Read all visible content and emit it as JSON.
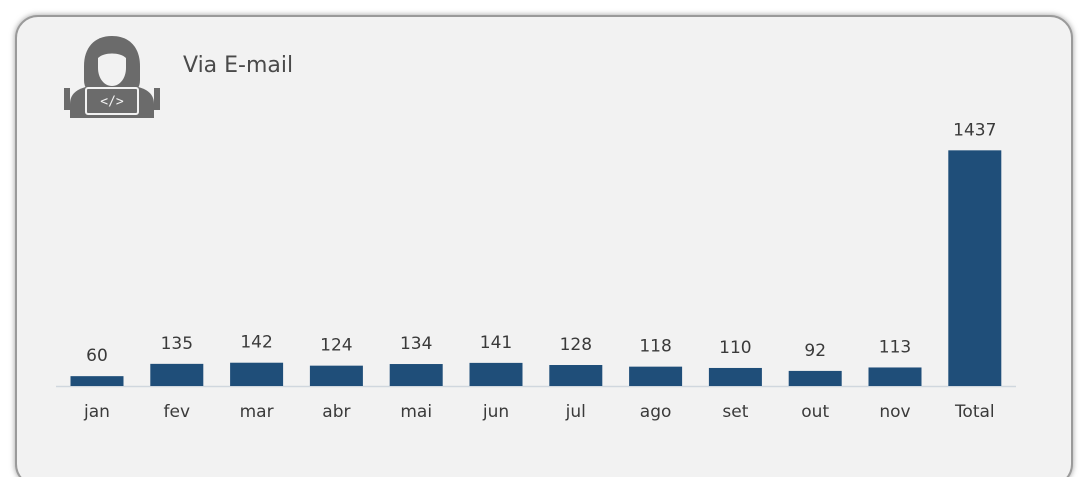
{
  "chart_data": {
    "type": "bar",
    "title": "Via E-mail",
    "categories": [
      "jan",
      "fev",
      "mar",
      "abr",
      "mai",
      "jun",
      "jul",
      "ago",
      "set",
      "out",
      "nov",
      "Total"
    ],
    "values": [
      60,
      135,
      142,
      124,
      134,
      141,
      128,
      118,
      110,
      92,
      113,
      1437
    ],
    "color": "#1f4e79",
    "ylim": [
      0,
      1500
    ]
  }
}
